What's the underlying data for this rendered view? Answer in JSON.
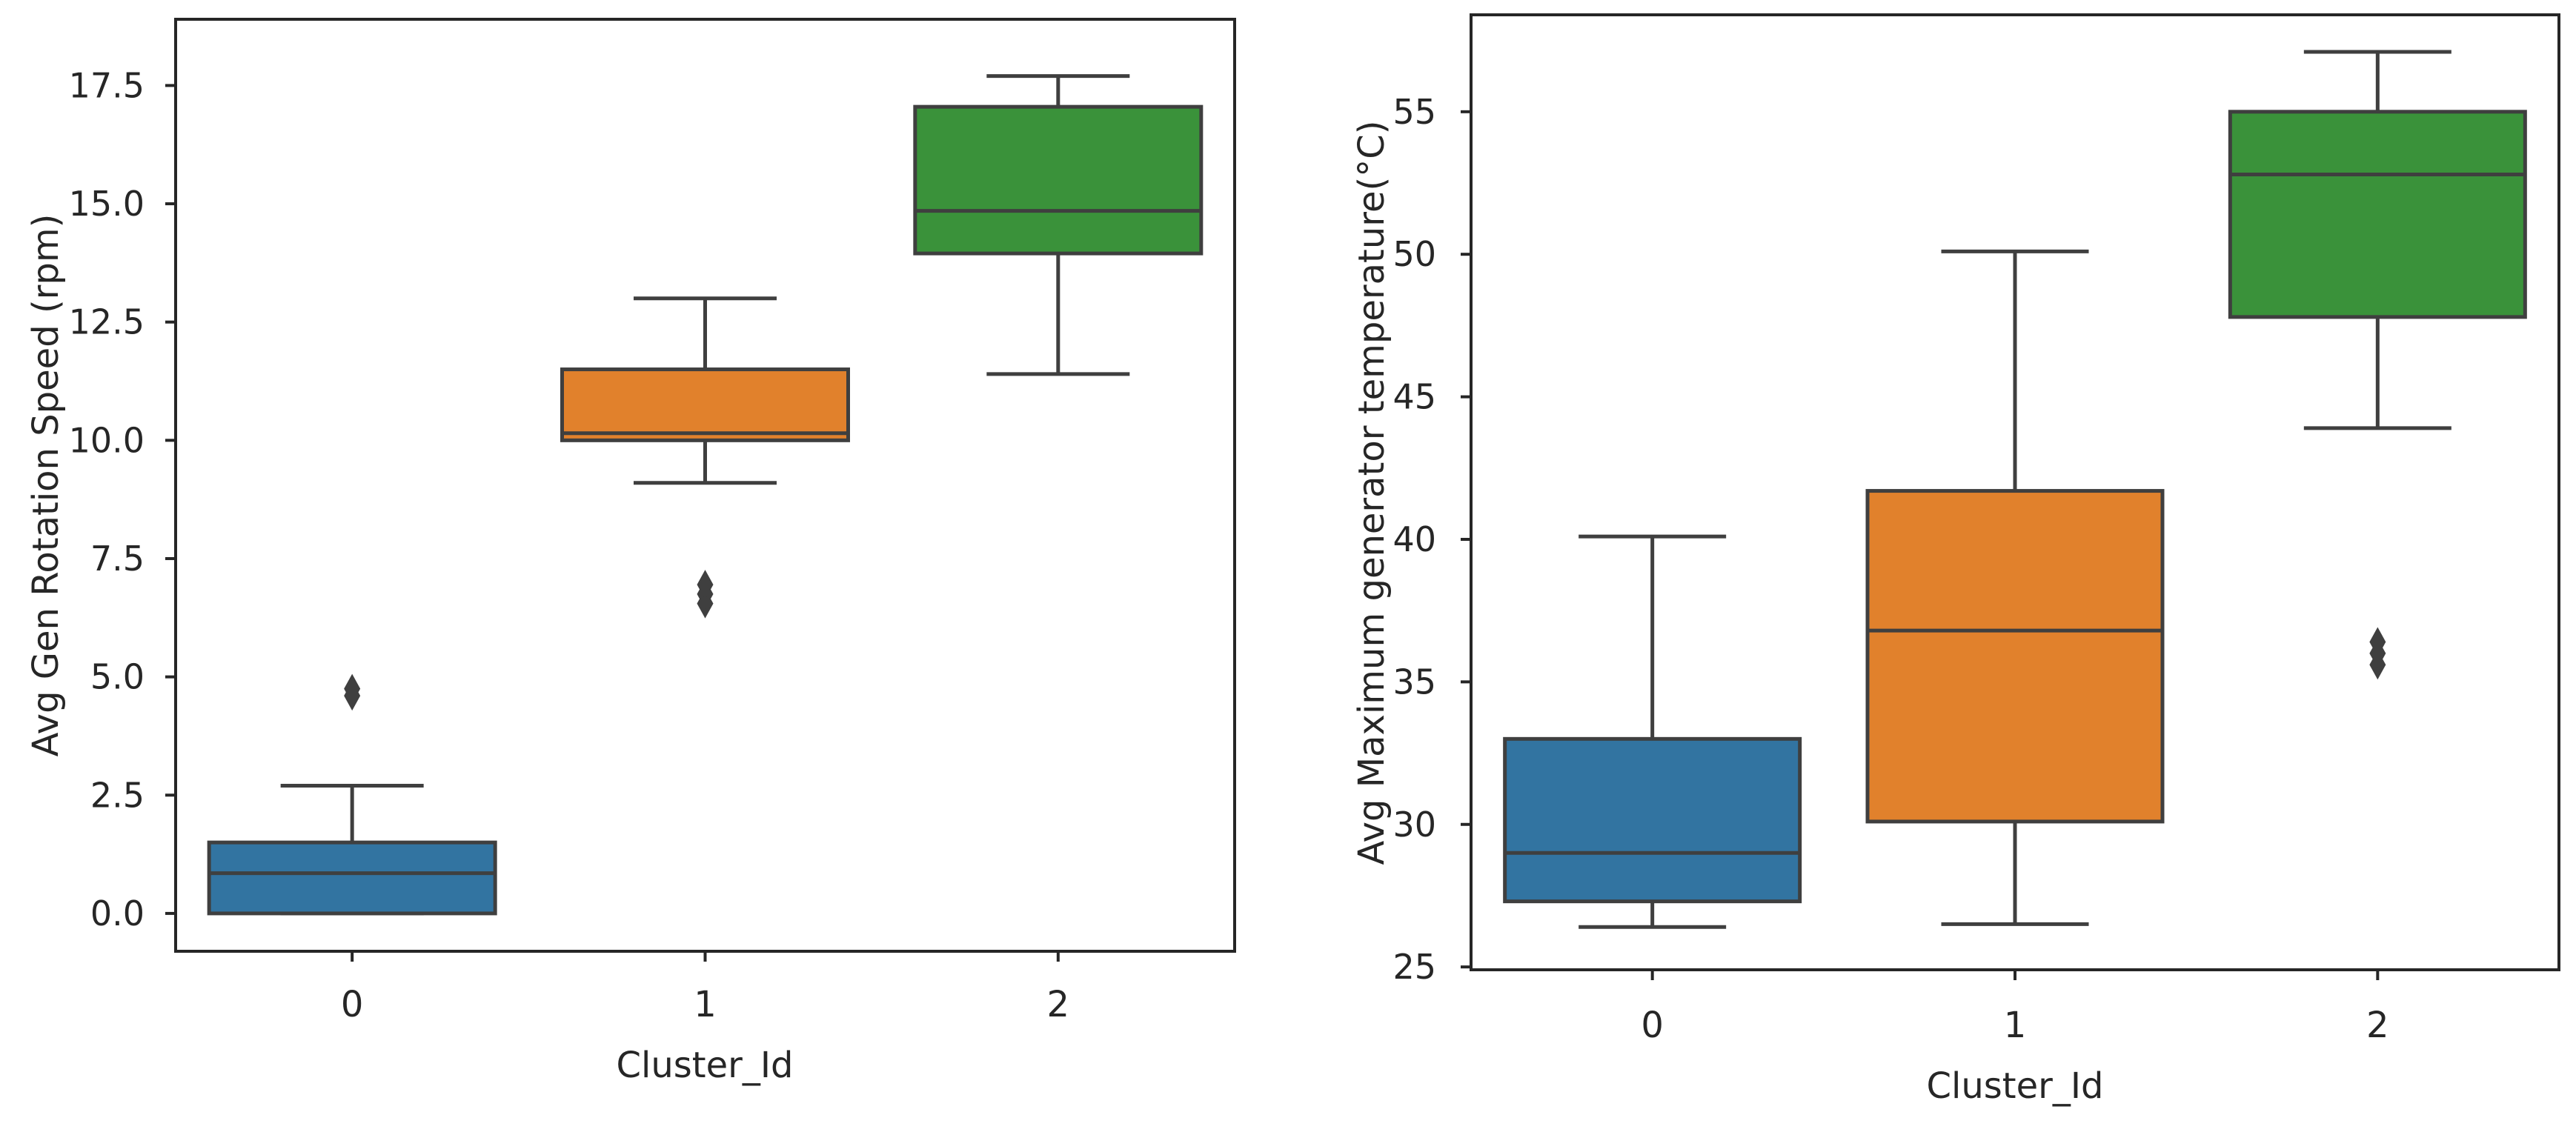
{
  "chart_data": [
    {
      "type": "box",
      "xlabel": "Cluster_Id",
      "ylabel": "Avg Gen Rotation Speed (rpm)",
      "ylim": [
        -0.8,
        18.9
      ],
      "yticks": [
        "0.0",
        "2.5",
        "5.0",
        "7.5",
        "10.0",
        "12.5",
        "15.0",
        "17.5"
      ],
      "ytick_values": [
        0,
        2.5,
        5,
        7.5,
        10,
        12.5,
        15,
        17.5
      ],
      "categories": [
        "0",
        "1",
        "2"
      ],
      "boxes": [
        {
          "category": "0",
          "color": "#3274a1",
          "whisker_low": 0.0,
          "q1": 0.0,
          "median": 0.85,
          "q3": 1.5,
          "whisker_high": 2.7,
          "outliers": [
            4.6,
            4.75
          ]
        },
        {
          "category": "1",
          "color": "#e1812c",
          "whisker_low": 9.1,
          "q1": 10.0,
          "median": 10.15,
          "q3": 11.5,
          "whisker_high": 13.0,
          "outliers": [
            6.55,
            6.75,
            6.95
          ]
        },
        {
          "category": "2",
          "color": "#3a923a",
          "whisker_low": 11.4,
          "q1": 13.95,
          "median": 14.85,
          "q3": 17.05,
          "whisker_high": 17.7,
          "outliers": []
        }
      ]
    },
    {
      "type": "box",
      "xlabel": "Cluster_Id",
      "ylabel": "Avg Maximum generator temperature(°C)",
      "ylim": [
        24.9,
        58.4
      ],
      "yticks": [
        "25",
        "30",
        "35",
        "40",
        "45",
        "50",
        "55"
      ],
      "ytick_values": [
        25,
        30,
        35,
        40,
        45,
        50,
        55
      ],
      "categories": [
        "0",
        "1",
        "2"
      ],
      "boxes": [
        {
          "category": "0",
          "color": "#3274a1",
          "whisker_low": 26.4,
          "q1": 27.3,
          "median": 29.0,
          "q3": 33.0,
          "whisker_high": 40.1,
          "outliers": []
        },
        {
          "category": "1",
          "color": "#e1812c",
          "whisker_low": 26.5,
          "q1": 30.1,
          "median": 36.8,
          "q3": 41.7,
          "whisker_high": 50.1,
          "outliers": []
        },
        {
          "category": "2",
          "color": "#3a923a",
          "whisker_low": 43.9,
          "q1": 47.8,
          "median": 52.8,
          "q3": 55.0,
          "whisker_high": 57.1,
          "outliers": [
            35.6,
            36.0,
            36.4
          ]
        }
      ]
    }
  ]
}
